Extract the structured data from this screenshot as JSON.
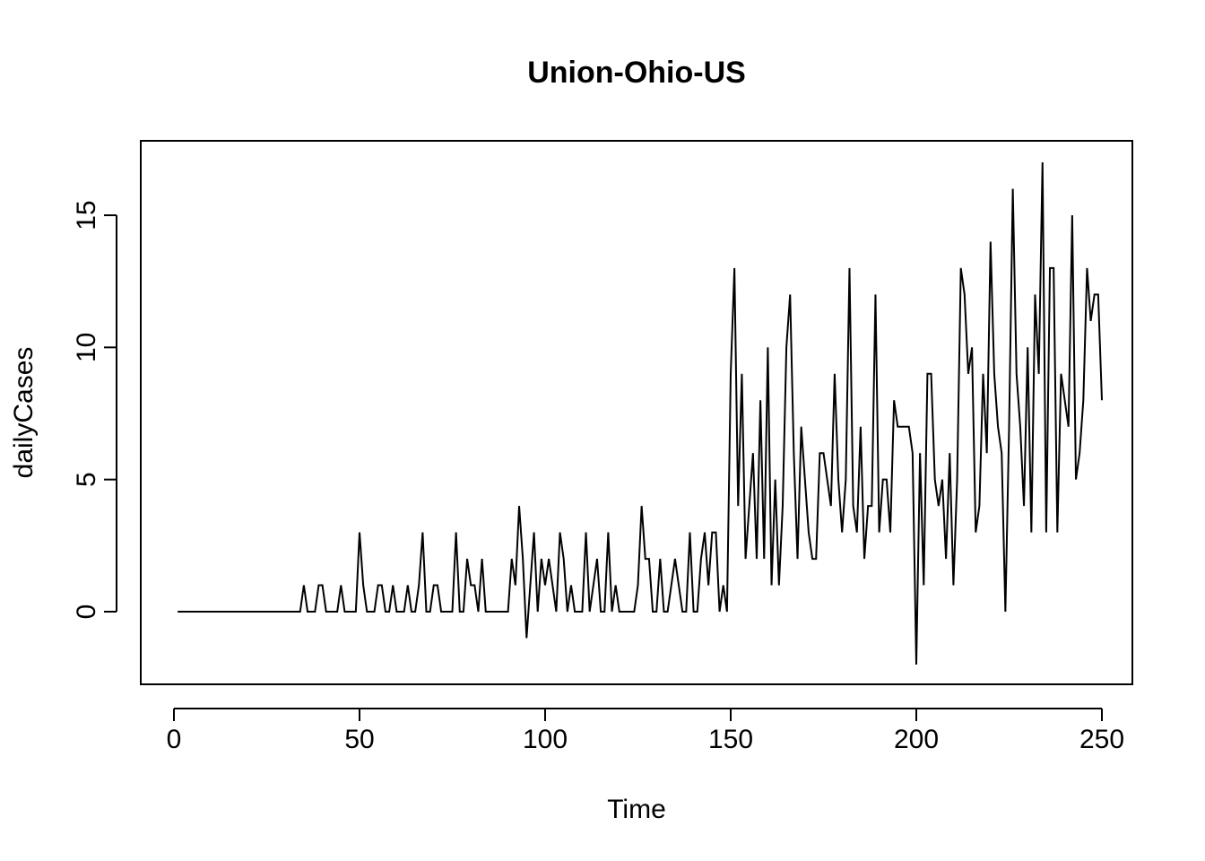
{
  "chart_data": {
    "type": "line",
    "title": "Union-Ohio-US",
    "xlabel": "Time",
    "ylabel": "dailyCases",
    "xlim": [
      -7,
      260
    ],
    "ylim": [
      -2,
      17.5
    ],
    "xticks": [
      0,
      50,
      100,
      150,
      200,
      250
    ],
    "xtick_labels": [
      "0",
      "50",
      "100",
      "150",
      "200",
      "250"
    ],
    "yticks": [
      0,
      5,
      10,
      15
    ],
    "ytick_labels": [
      "0",
      "5",
      "10",
      "15"
    ],
    "grid": false,
    "legend": "none",
    "series": [
      {
        "color": "#000000",
        "x_start": 1,
        "values": [
          0,
          0,
          0,
          0,
          0,
          0,
          0,
          0,
          0,
          0,
          0,
          0,
          0,
          0,
          0,
          0,
          0,
          0,
          0,
          0,
          0,
          0,
          0,
          0,
          0,
          0,
          0,
          0,
          0,
          0,
          0,
          0,
          0,
          0,
          1,
          0,
          0,
          0,
          1,
          1,
          0,
          0,
          0,
          0,
          1,
          0,
          0,
          0,
          0,
          3,
          1,
          0,
          0,
          0,
          1,
          1,
          0,
          0,
          1,
          0,
          0,
          0,
          1,
          0,
          0,
          1,
          3,
          0,
          0,
          1,
          1,
          0,
          0,
          0,
          0,
          3,
          0,
          0,
          2,
          1,
          1,
          0,
          2,
          0,
          0,
          0,
          0,
          0,
          0,
          0,
          2,
          1,
          4,
          2,
          -1,
          1,
          3,
          0,
          2,
          1,
          2,
          1,
          0,
          3,
          2,
          0,
          1,
          0,
          0,
          0,
          3,
          0,
          1,
          2,
          0,
          0,
          3,
          0,
          1,
          0,
          0,
          0,
          0,
          0,
          1,
          4,
          2,
          2,
          0,
          0,
          2,
          0,
          0,
          1,
          2,
          1,
          0,
          0,
          3,
          0,
          0,
          2,
          3,
          1,
          3,
          3,
          0,
          1,
          0,
          9,
          13,
          4,
          9,
          2,
          4,
          6,
          2,
          8,
          2,
          10,
          1,
          5,
          1,
          4,
          10,
          12,
          6,
          2,
          7,
          5,
          3,
          2,
          2,
          6,
          6,
          5,
          4,
          9,
          5,
          3,
          5,
          13,
          4,
          3,
          7,
          2,
          4,
          4,
          12,
          3,
          5,
          5,
          3,
          8,
          7,
          7,
          7,
          7,
          6,
          -2,
          6,
          1,
          9,
          9,
          5,
          4,
          5,
          2,
          6,
          1,
          5,
          13,
          12,
          9,
          10,
          3,
          4,
          9,
          6,
          14,
          9,
          7,
          6,
          0,
          7,
          16,
          9,
          7,
          4,
          10,
          3,
          12,
          9,
          17,
          3,
          13,
          13,
          3,
          9,
          8,
          7,
          15,
          5,
          6,
          8,
          13,
          11,
          12,
          12,
          8
        ]
      }
    ]
  }
}
